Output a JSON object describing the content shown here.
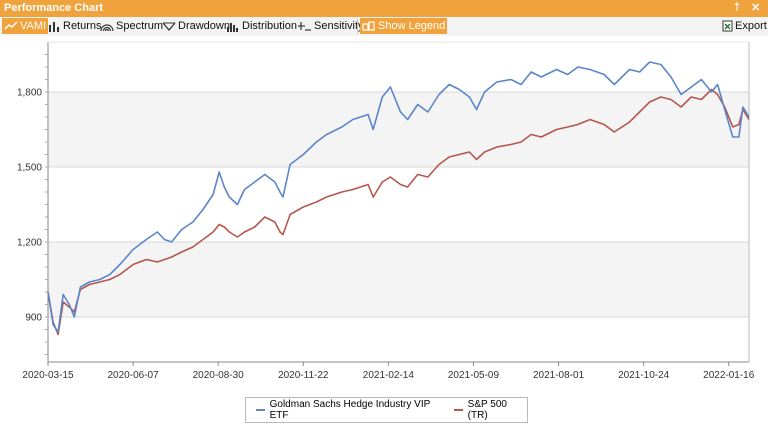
{
  "window": {
    "title": "Performance Chart",
    "pin_glyph": "†",
    "close_glyph": "✕"
  },
  "toolbar": {
    "items": [
      {
        "label": "VAMI",
        "icon": "line-chart-icon",
        "active": true
      },
      {
        "label": "Returns",
        "icon": "bar-chart-icon",
        "active": false
      },
      {
        "label": "Spectrum",
        "icon": "spectrum-icon",
        "active": false
      },
      {
        "label": "Drawdown",
        "icon": "drawdown-icon",
        "active": false
      },
      {
        "label": "Distribution",
        "icon": "distribution-icon",
        "active": false
      },
      {
        "label": "Sensitivity",
        "icon": "sensitivity-icon",
        "active": false
      },
      {
        "label": "Show Legend",
        "icon": "legend-icon",
        "active": true
      }
    ],
    "export_label": "Export"
  },
  "colors": {
    "accent": "#f0a23c",
    "series1": "#5b86c8",
    "series2": "#b5574f"
  },
  "chart_data": {
    "type": "line",
    "x_tick_labels": [
      "2020-03-15",
      "2020-06-07",
      "2020-08-30",
      "2020-11-22",
      "2021-02-14",
      "2021-05-09",
      "2021-08-01",
      "2021-10-24",
      "2022-01-16"
    ],
    "x_ticks": [
      "2020-03-15",
      "2020-06-07",
      "2020-08-30",
      "2020-11-22",
      "2021-02-14",
      "2021-05-09",
      "2021-08-01",
      "2021-10-24",
      "2022-01-16"
    ],
    "x_range": [
      "2020-03-15",
      "2022-02-05"
    ],
    "y_tick_labels": [
      "900",
      "1,200",
      "1,500",
      "1,800"
    ],
    "y_ticks": [
      900,
      1200,
      1500,
      1800
    ],
    "ylim": [
      720,
      2000
    ],
    "bands": [
      [
        1500,
        1800
      ],
      [
        900,
        1200
      ]
    ],
    "legend_position": "bottom",
    "series": [
      {
        "name": "Goldman Sachs Hedge Industry VIP ETF",
        "points": [
          [
            "2020-03-15",
            1000
          ],
          [
            "2020-03-20",
            870
          ],
          [
            "2020-03-25",
            840
          ],
          [
            "2020-03-30",
            990
          ],
          [
            "2020-04-05",
            950
          ],
          [
            "2020-04-10",
            900
          ],
          [
            "2020-04-16",
            1020
          ],
          [
            "2020-04-25",
            1040
          ],
          [
            "2020-05-05",
            1050
          ],
          [
            "2020-05-15",
            1070
          ],
          [
            "2020-05-25",
            1110
          ],
          [
            "2020-06-07",
            1170
          ],
          [
            "2020-06-20",
            1210
          ],
          [
            "2020-07-01",
            1240
          ],
          [
            "2020-07-08",
            1210
          ],
          [
            "2020-07-15",
            1200
          ],
          [
            "2020-07-25",
            1250
          ],
          [
            "2020-08-05",
            1280
          ],
          [
            "2020-08-15",
            1330
          ],
          [
            "2020-08-25",
            1390
          ],
          [
            "2020-08-31",
            1480
          ],
          [
            "2020-09-05",
            1420
          ],
          [
            "2020-09-10",
            1380
          ],
          [
            "2020-09-18",
            1350
          ],
          [
            "2020-09-25",
            1410
          ],
          [
            "2020-10-05",
            1440
          ],
          [
            "2020-10-15",
            1470
          ],
          [
            "2020-10-25",
            1440
          ],
          [
            "2020-10-30",
            1400
          ],
          [
            "2020-11-02",
            1380
          ],
          [
            "2020-11-09",
            1510
          ],
          [
            "2020-11-22",
            1550
          ],
          [
            "2020-12-05",
            1600
          ],
          [
            "2020-12-15",
            1630
          ],
          [
            "2020-12-30",
            1660
          ],
          [
            "2021-01-10",
            1690
          ],
          [
            "2021-01-25",
            1710
          ],
          [
            "2021-01-30",
            1650
          ],
          [
            "2021-02-08",
            1780
          ],
          [
            "2021-02-16",
            1820
          ],
          [
            "2021-02-26",
            1720
          ],
          [
            "2021-03-05",
            1690
          ],
          [
            "2021-03-15",
            1750
          ],
          [
            "2021-03-25",
            1720
          ],
          [
            "2021-04-05",
            1790
          ],
          [
            "2021-04-15",
            1830
          ],
          [
            "2021-04-25",
            1810
          ],
          [
            "2021-05-05",
            1780
          ],
          [
            "2021-05-12",
            1730
          ],
          [
            "2021-05-20",
            1800
          ],
          [
            "2021-06-01",
            1840
          ],
          [
            "2021-06-15",
            1850
          ],
          [
            "2021-06-25",
            1830
          ],
          [
            "2021-07-05",
            1880
          ],
          [
            "2021-07-15",
            1860
          ],
          [
            "2021-07-30",
            1890
          ],
          [
            "2021-08-10",
            1870
          ],
          [
            "2021-08-20",
            1900
          ],
          [
            "2021-09-01",
            1890
          ],
          [
            "2021-09-15",
            1870
          ],
          [
            "2021-09-25",
            1830
          ],
          [
            "2021-10-10",
            1890
          ],
          [
            "2021-10-20",
            1880
          ],
          [
            "2021-10-30",
            1920
          ],
          [
            "2021-11-10",
            1910
          ],
          [
            "2021-11-20",
            1860
          ],
          [
            "2021-11-30",
            1790
          ],
          [
            "2021-12-10",
            1820
          ],
          [
            "2021-12-20",
            1850
          ],
          [
            "2021-12-30",
            1800
          ],
          [
            "2022-01-05",
            1830
          ],
          [
            "2022-01-12",
            1730
          ],
          [
            "2022-01-20",
            1620
          ],
          [
            "2022-01-26",
            1620
          ],
          [
            "2022-01-30",
            1740
          ],
          [
            "2022-02-05",
            1700
          ]
        ]
      },
      {
        "name": "S&P 500 (TR)",
        "points": [
          [
            "2020-03-15",
            1000
          ],
          [
            "2020-03-20",
            880
          ],
          [
            "2020-03-25",
            830
          ],
          [
            "2020-03-30",
            960
          ],
          [
            "2020-04-05",
            940
          ],
          [
            "2020-04-10",
            920
          ],
          [
            "2020-04-16",
            1010
          ],
          [
            "2020-04-25",
            1030
          ],
          [
            "2020-05-05",
            1040
          ],
          [
            "2020-05-15",
            1050
          ],
          [
            "2020-05-25",
            1070
          ],
          [
            "2020-06-07",
            1110
          ],
          [
            "2020-06-20",
            1130
          ],
          [
            "2020-07-01",
            1120
          ],
          [
            "2020-07-08",
            1130
          ],
          [
            "2020-07-15",
            1140
          ],
          [
            "2020-07-25",
            1160
          ],
          [
            "2020-08-05",
            1180
          ],
          [
            "2020-08-15",
            1210
          ],
          [
            "2020-08-25",
            1240
          ],
          [
            "2020-08-31",
            1270
          ],
          [
            "2020-09-05",
            1260
          ],
          [
            "2020-09-10",
            1240
          ],
          [
            "2020-09-18",
            1220
          ],
          [
            "2020-09-25",
            1240
          ],
          [
            "2020-10-05",
            1260
          ],
          [
            "2020-10-15",
            1300
          ],
          [
            "2020-10-25",
            1280
          ],
          [
            "2020-10-30",
            1240
          ],
          [
            "2020-11-02",
            1230
          ],
          [
            "2020-11-09",
            1310
          ],
          [
            "2020-11-22",
            1340
          ],
          [
            "2020-12-05",
            1360
          ],
          [
            "2020-12-15",
            1380
          ],
          [
            "2020-12-30",
            1400
          ],
          [
            "2021-01-10",
            1410
          ],
          [
            "2021-01-25",
            1430
          ],
          [
            "2021-01-30",
            1380
          ],
          [
            "2021-02-08",
            1440
          ],
          [
            "2021-02-16",
            1460
          ],
          [
            "2021-02-26",
            1430
          ],
          [
            "2021-03-05",
            1420
          ],
          [
            "2021-03-15",
            1470
          ],
          [
            "2021-03-25",
            1460
          ],
          [
            "2021-04-05",
            1510
          ],
          [
            "2021-04-15",
            1540
          ],
          [
            "2021-04-25",
            1550
          ],
          [
            "2021-05-05",
            1560
          ],
          [
            "2021-05-12",
            1530
          ],
          [
            "2021-05-20",
            1560
          ],
          [
            "2021-06-01",
            1580
          ],
          [
            "2021-06-15",
            1590
          ],
          [
            "2021-06-25",
            1600
          ],
          [
            "2021-07-05",
            1630
          ],
          [
            "2021-07-15",
            1620
          ],
          [
            "2021-07-30",
            1650
          ],
          [
            "2021-08-10",
            1660
          ],
          [
            "2021-08-20",
            1670
          ],
          [
            "2021-09-01",
            1690
          ],
          [
            "2021-09-15",
            1670
          ],
          [
            "2021-09-25",
            1640
          ],
          [
            "2021-10-10",
            1680
          ],
          [
            "2021-10-20",
            1720
          ],
          [
            "2021-10-30",
            1760
          ],
          [
            "2021-11-10",
            1780
          ],
          [
            "2021-11-20",
            1770
          ],
          [
            "2021-11-30",
            1740
          ],
          [
            "2021-12-10",
            1780
          ],
          [
            "2021-12-20",
            1770
          ],
          [
            "2021-12-30",
            1810
          ],
          [
            "2022-01-05",
            1790
          ],
          [
            "2022-01-12",
            1740
          ],
          [
            "2022-01-20",
            1660
          ],
          [
            "2022-01-26",
            1670
          ],
          [
            "2022-01-30",
            1730
          ],
          [
            "2022-02-05",
            1690
          ]
        ]
      }
    ]
  }
}
